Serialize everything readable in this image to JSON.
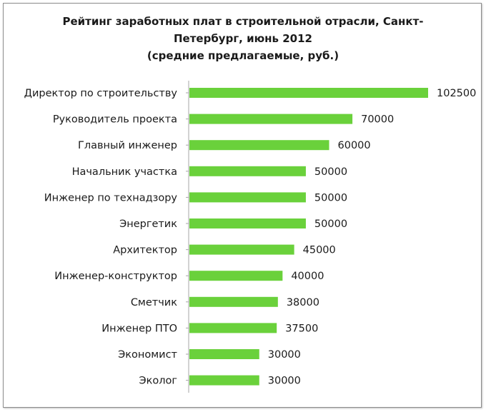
{
  "chart_data": {
    "type": "bar",
    "orientation": "horizontal",
    "title_lines": [
      "Рейтинг заработных плат в строительной отрасли, Санкт-",
      "Петербург, июнь 2012",
      "(средние предлагаемые, руб.)"
    ],
    "categories": [
      "Директор по строительству",
      "Руководитель проекта",
      "Главный инженер",
      "Начальник участка",
      "Инженер по технадзору",
      "Энергетик",
      "Архитектор",
      "Инженер-конструктор",
      "Сметчик",
      "Инженер ПТО",
      "Экономист",
      "Эколог"
    ],
    "values": [
      102500,
      70000,
      60000,
      50000,
      50000,
      50000,
      45000,
      40000,
      38000,
      37500,
      30000,
      30000
    ],
    "value_labels": [
      "102500",
      "70000",
      "60000",
      "50000",
      "50000",
      "50000",
      "45000",
      "40000",
      "38000",
      "37500",
      "30000",
      "30000"
    ],
    "xlim": [
      0,
      102500
    ],
    "grid": false,
    "legend": "none",
    "bar_color": "#6ad13b"
  }
}
